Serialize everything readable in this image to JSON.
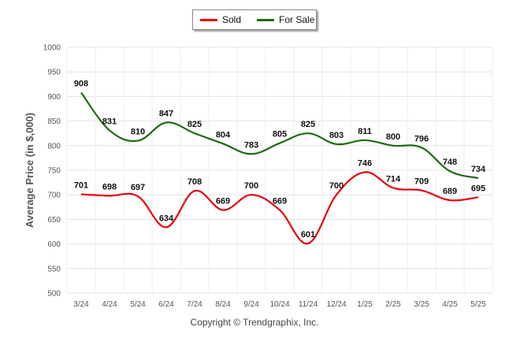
{
  "legend": {
    "sold_label": "Sold",
    "forsale_label": "For Sale"
  },
  "copyright": "Copyright © Trendgraphix, Inc.",
  "chart_data": {
    "type": "line",
    "title": "",
    "xlabel": "",
    "ylabel": "Average Price (in $,000)",
    "ylim": [
      500,
      1000
    ],
    "yticks": [
      500,
      550,
      600,
      650,
      700,
      750,
      800,
      850,
      900,
      950,
      1000
    ],
    "grid": true,
    "legend_position": "top-center",
    "categories": [
      "3/24",
      "4/24",
      "5/24",
      "6/24",
      "7/24",
      "8/24",
      "9/24",
      "10/24",
      "11/24",
      "12/24",
      "1/25",
      "2/25",
      "3/25",
      "4/25",
      "5/25"
    ],
    "series": [
      {
        "name": "Sold",
        "color": "#e8000b",
        "values": [
          701,
          698,
          697,
          634,
          708,
          669,
          700,
          669,
          601,
          700,
          746,
          714,
          709,
          689,
          695
        ]
      },
      {
        "name": "For Sale",
        "color": "#1f6b0f",
        "values": [
          908,
          831,
          810,
          847,
          825,
          804,
          783,
          805,
          825,
          803,
          811,
          800,
          796,
          748,
          734
        ]
      }
    ]
  }
}
